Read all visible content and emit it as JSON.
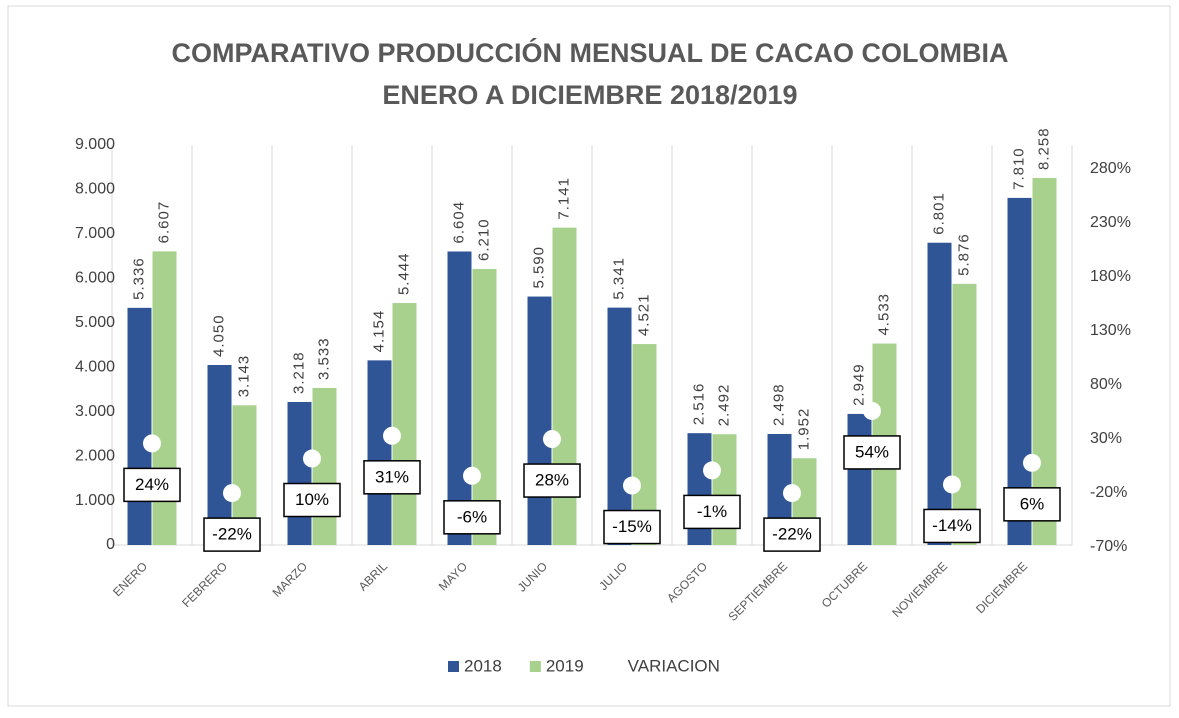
{
  "chart_data": {
    "type": "bar",
    "title": "COMPARATIVO PRODUCCIÓN  MENSUAL DE CACAO COLOMBIA",
    "subtitle": "ENERO A DICIEMBRE 2018/2019",
    "categories": [
      "ENERO",
      "FEBRERO",
      "MARZO",
      "ABRIL",
      "MAYO",
      "JUNIO",
      "JULIO",
      "AGOSTO",
      "SEPTIEMBRE",
      "OCTUBRE",
      "NOVIEMBRE",
      "DICIEMBRE"
    ],
    "series": [
      {
        "name": "2018",
        "color": "#2f5597",
        "values": [
          5336,
          4050,
          3218,
          4154,
          6604,
          5590,
          5341,
          2516,
          2498,
          2949,
          6801,
          7810
        ],
        "value_labels": [
          "5.336",
          "4.050",
          "3.218",
          "4.154",
          "6.604",
          "5.590",
          "5.341",
          "2.516",
          "2.498",
          "2.949",
          "6.801",
          "7.810"
        ]
      },
      {
        "name": "2019",
        "color": "#a9d18e",
        "values": [
          6607,
          3143,
          3533,
          5444,
          6210,
          7141,
          4521,
          2492,
          1952,
          4533,
          5876,
          8258
        ],
        "value_labels": [
          "6.607",
          "3.143",
          "3.533",
          "5.444",
          "6.210",
          "7.141",
          "4.521",
          "2.492",
          "1.952",
          "4.533",
          "5.876",
          "8.258"
        ]
      },
      {
        "name": "VARIACION",
        "type": "scatter",
        "axis": "y2",
        "color": "#ffffff",
        "values": [
          24,
          -22,
          10,
          31,
          -6,
          28,
          -15,
          -1,
          -22,
          54,
          -14,
          6
        ],
        "value_labels": [
          "24%",
          "-22%",
          "10%",
          "31%",
          "-6%",
          "28%",
          "-15%",
          "-1%",
          "-22%",
          "54%",
          "-14%",
          "6%"
        ]
      }
    ],
    "ylim": [
      0,
      9000
    ],
    "yticks": [
      0,
      {
        "value": 1000,
        "label": "1.000"
      },
      {
        "value": 2000,
        "label": "2.000"
      },
      {
        "value": 3000,
        "label": "3.000"
      },
      {
        "value": 4000,
        "label": "4.000"
      },
      {
        "value": 5000,
        "label": "5.000"
      },
      {
        "value": 6000,
        "label": "6.000"
      },
      {
        "value": 7000,
        "label": "7.000"
      },
      {
        "value": 8000,
        "label": "8.000"
      },
      {
        "value": 9000,
        "label": "9.000"
      }
    ],
    "y2lim": [
      -70,
      300
    ],
    "y2ticks": [
      {
        "value": -70,
        "label": "-70%"
      },
      {
        "value": -20,
        "label": "-20%"
      },
      {
        "value": 30,
        "label": "30%"
      },
      {
        "value": 80,
        "label": "80%"
      },
      {
        "value": 130,
        "label": "130%"
      },
      {
        "value": 180,
        "label": "180%"
      },
      {
        "value": 230,
        "label": "230%"
      },
      {
        "value": 280,
        "label": "280%"
      }
    ]
  }
}
